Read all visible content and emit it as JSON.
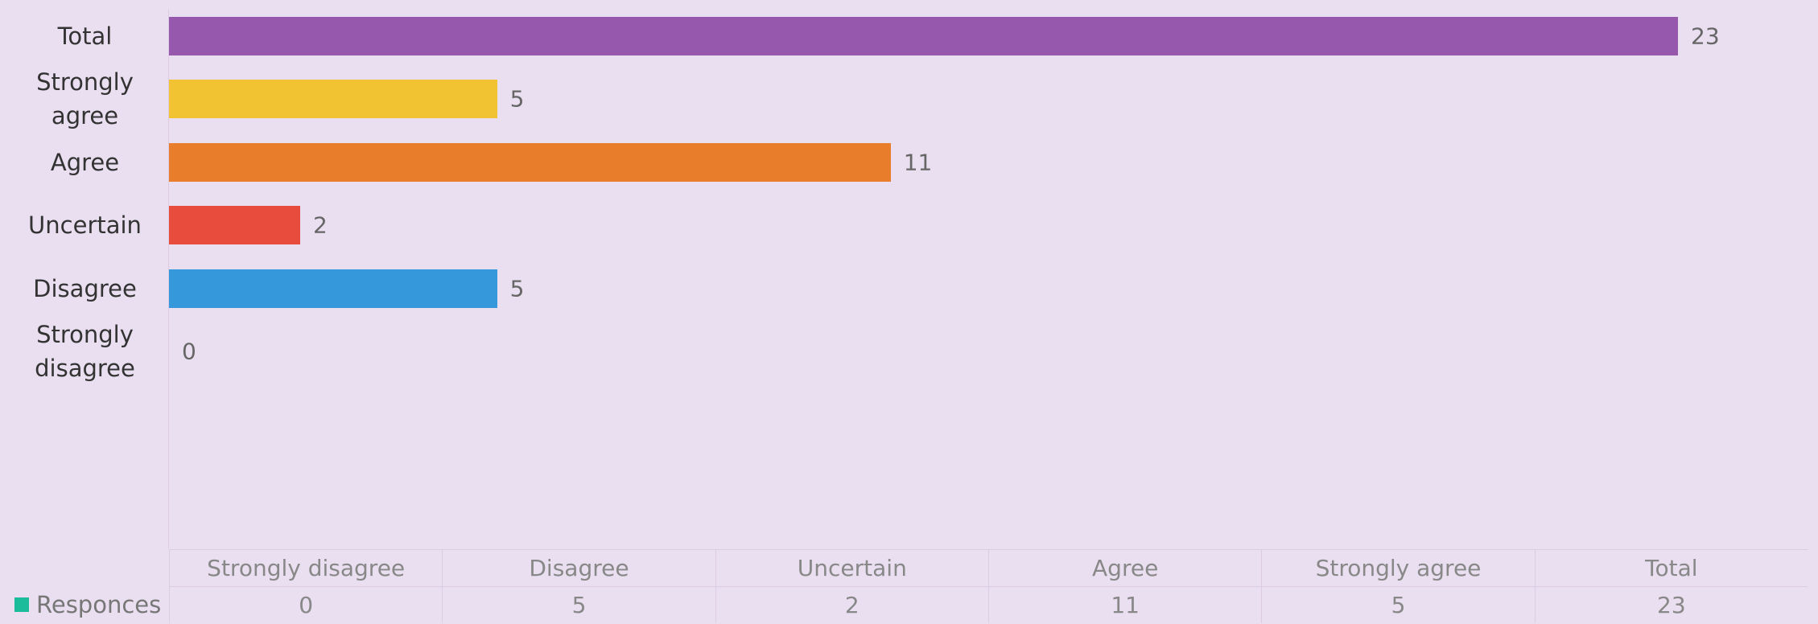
{
  "chart_data": {
    "type": "bar",
    "orientation": "horizontal",
    "categories": [
      "Strongly disagree",
      "Disagree",
      "Uncertain",
      "Agree",
      "Strongly agree",
      "Total"
    ],
    "series": [
      {
        "name": "Responces",
        "color": "#1abc9c",
        "values": [
          0,
          5,
          2,
          11,
          5,
          23
        ]
      }
    ],
    "colors": [
      "#1abc9c",
      "#3498db",
      "#e74c3c",
      "#e87e2c",
      "#f1c232",
      "#9558ad"
    ],
    "data_table": true
  }
}
